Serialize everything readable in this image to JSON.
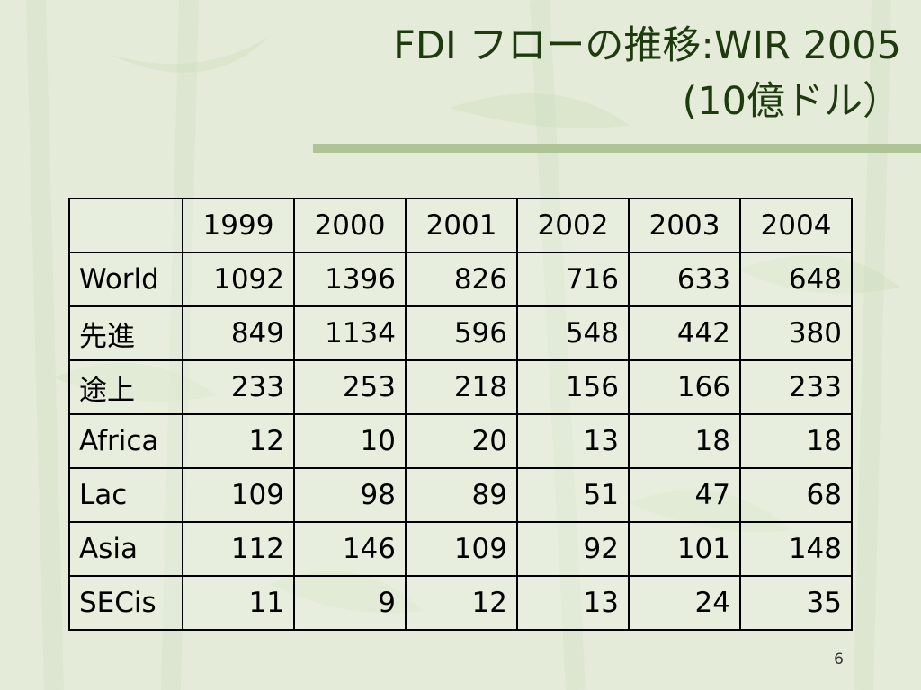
{
  "title": {
    "line1": "FDI フローの推移:WIR 2005",
    "line2": "(10億ドル）"
  },
  "table": {
    "headers": [
      "",
      "1999",
      "2000",
      "2001",
      "2002",
      "2003",
      "2004"
    ],
    "rows": [
      {
        "label": "World",
        "values": [
          "1092",
          "1396",
          "826",
          "716",
          "633",
          "648"
        ]
      },
      {
        "label": "先進",
        "values": [
          "849",
          "1134",
          "596",
          "548",
          "442",
          "380"
        ]
      },
      {
        "label": "途上",
        "values": [
          "233",
          "253",
          "218",
          "156",
          "166",
          "233"
        ]
      },
      {
        "label": "Africa",
        "values": [
          "12",
          "10",
          "20",
          "13",
          "18",
          "18"
        ]
      },
      {
        "label": "Lac",
        "values": [
          "109",
          "98",
          "89",
          "51",
          "47",
          "68"
        ]
      },
      {
        "label": "Asia",
        "values": [
          "112",
          "146",
          "109",
          "92",
          "101",
          "148"
        ]
      },
      {
        "label": "SECis",
        "values": [
          "11",
          "9",
          "12",
          "13",
          "24",
          "35"
        ]
      }
    ]
  },
  "page_number": "6",
  "colors": {
    "background": "#e4ecd9",
    "title": "#1f3a0f",
    "accent_rule": "#aec497"
  }
}
